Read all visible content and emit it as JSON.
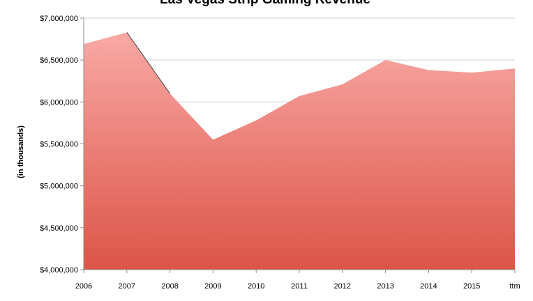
{
  "chart_data": {
    "type": "area",
    "title": "Las Vegas Strip Gaming Revenue",
    "xlabel": "",
    "ylabel": "(in thousands)",
    "categories": [
      "2006",
      "2007",
      "2008",
      "2009",
      "2010",
      "2011",
      "2012",
      "2013",
      "2014",
      "2015",
      "ttm"
    ],
    "values": [
      6690000,
      6830000,
      6100000,
      5550000,
      5780000,
      6070000,
      6210000,
      6500000,
      6380000,
      6350000,
      6400000
    ],
    "ylim": [
      4000000,
      7000000
    ],
    "y_ticks": [
      4000000,
      4500000,
      5000000,
      5500000,
      6000000,
      6500000,
      7000000
    ],
    "y_tick_labels": [
      "$4,000,000",
      "$4,500,000",
      "$5,000,000",
      "$5,500,000",
      "$6,000,000",
      "$6,500,000",
      "$7,000,000"
    ],
    "grid": true,
    "legend": "none",
    "colors": {
      "fill_top": "#f9a9a5",
      "fill_bottom": "#dc5448",
      "grid": "#d0d0d0",
      "axis": "#8c8c8c",
      "outline": "#444444"
    }
  }
}
